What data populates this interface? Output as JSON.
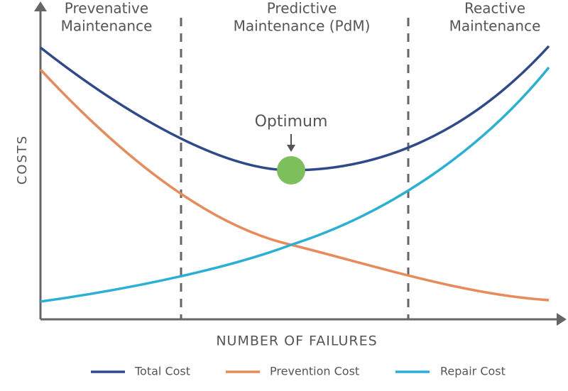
{
  "regions": [
    {
      "lines": [
        "Prevenative",
        "Maintenance"
      ]
    },
    {
      "lines": [
        "Predictive",
        "Maintenance (PdM)"
      ]
    },
    {
      "lines": [
        "Reactive",
        "Maintenance"
      ]
    }
  ],
  "annotation": "Optimum",
  "y_axis_label": "COSTS",
  "x_axis_label": "NUMBER OF FAILURES",
  "legend": [
    "Total Cost",
    "Prevention Cost",
    "Repair Cost"
  ]
}
